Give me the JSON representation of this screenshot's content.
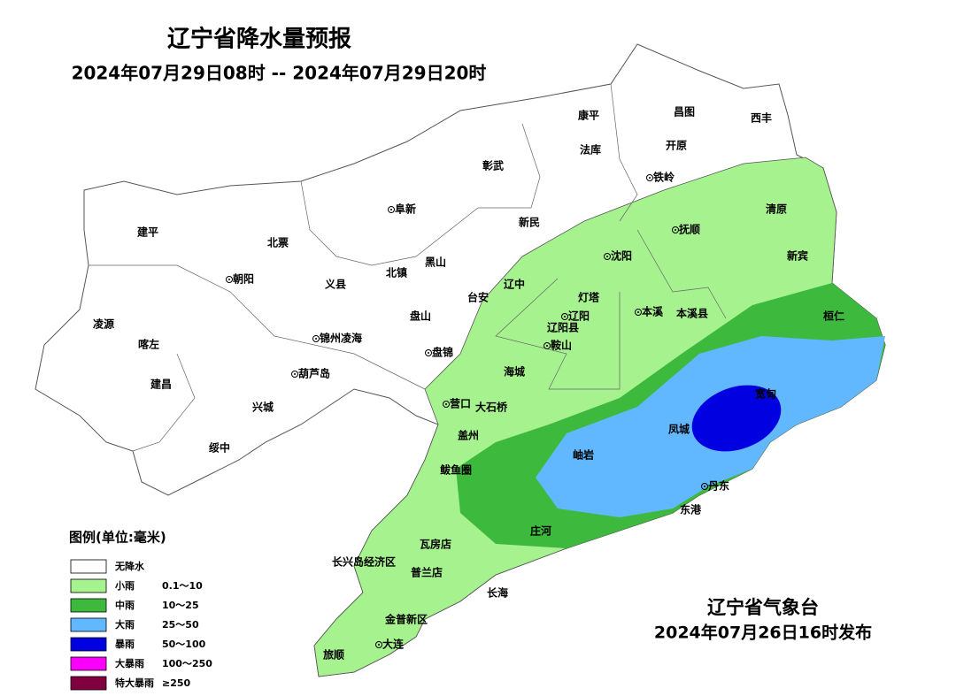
{
  "header": {
    "title": "辽宁省降水量预报",
    "period": "2024年07月29日08时 -- 2024年07月29日20时"
  },
  "places": [
    "康平",
    "昌图",
    "西丰",
    "法库",
    "开原",
    "彰武",
    "铁岭",
    "阜新",
    "清原",
    "建平",
    "新民",
    "北票",
    "抚顺",
    "沈阳",
    "新宾",
    "黑山",
    "朝阳",
    "义县",
    "北镇",
    "辽中",
    "台安",
    "灯塔",
    "辽阳",
    "本溪",
    "本溪县",
    "桓仁",
    "凌源",
    "盘山",
    "锦州凌海",
    "辽阳县",
    "鞍山",
    "喀左",
    "盘锦",
    "葫芦岛",
    "海城",
    "建昌",
    "宽甸",
    "营口",
    "大石桥",
    "兴城",
    "凤城",
    "盖州",
    "绥中",
    "岫岩",
    "鲅鱼圈",
    "丹东",
    "东港",
    "庄河",
    "瓦房店",
    "长兴岛经济区",
    "普兰店",
    "长海",
    "金普新区",
    "大连",
    "旅顺"
  ],
  "legend": {
    "title": "图例(单位:毫米)",
    "items": [
      {
        "name": "无降水",
        "range": "",
        "color": "#ffffff"
      },
      {
        "name": "小雨",
        "range": "0.1～10",
        "color": "#a6f28f"
      },
      {
        "name": "中雨",
        "range": "10～25",
        "color": "#3dba3d"
      },
      {
        "name": "大雨",
        "range": "25～50",
        "color": "#61b8ff"
      },
      {
        "name": "暴雨",
        "range": "50～100",
        "color": "#0000e1"
      },
      {
        "name": "大暴雨",
        "range": "100～250",
        "color": "#fa00fa"
      },
      {
        "name": "特大暴雨",
        "range": "≥250",
        "color": "#800040"
      }
    ]
  },
  "footer": {
    "issuer": "辽宁省气象台",
    "issued": "2024年07月26日16时发布"
  }
}
